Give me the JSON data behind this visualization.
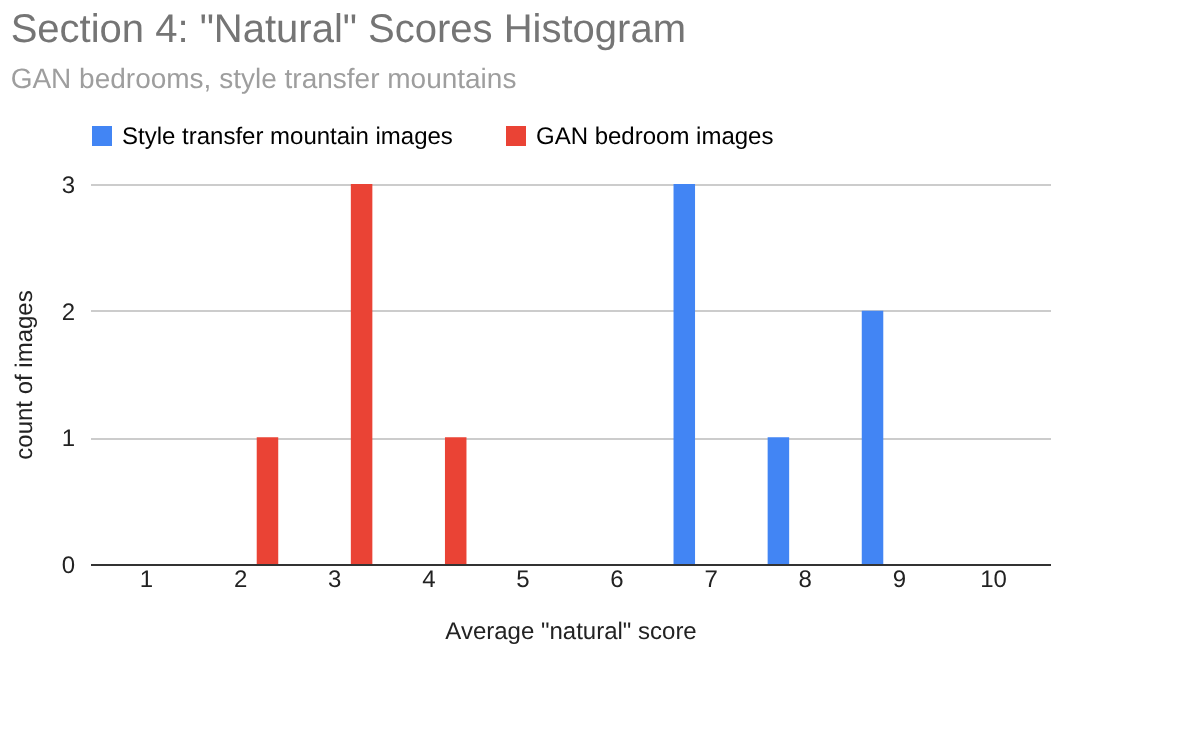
{
  "chart_data": {
    "type": "bar",
    "title": "Section 4: \"Natural\" Scores Histogram",
    "subtitle": "GAN bedrooms, style transfer mountains",
    "xlabel": "Average \"natural\" score",
    "ylabel": "count of images",
    "categories": [
      "1",
      "2",
      "3",
      "4",
      "5",
      "6",
      "7",
      "8",
      "9",
      "10"
    ],
    "series": [
      {
        "name": "Style transfer mountain images",
        "color": "#4285f4",
        "values": [
          0,
          0,
          0,
          0,
          0,
          0,
          3,
          1,
          2,
          0
        ]
      },
      {
        "name": "GAN bedroom images",
        "color": "#ea4335",
        "values": [
          0,
          1,
          3,
          1,
          0,
          0,
          0,
          0,
          0,
          0
        ]
      }
    ],
    "ylim": [
      0,
      3
    ],
    "yticks": [
      0,
      1,
      2,
      3
    ],
    "grid": "y",
    "legend": "top"
  }
}
